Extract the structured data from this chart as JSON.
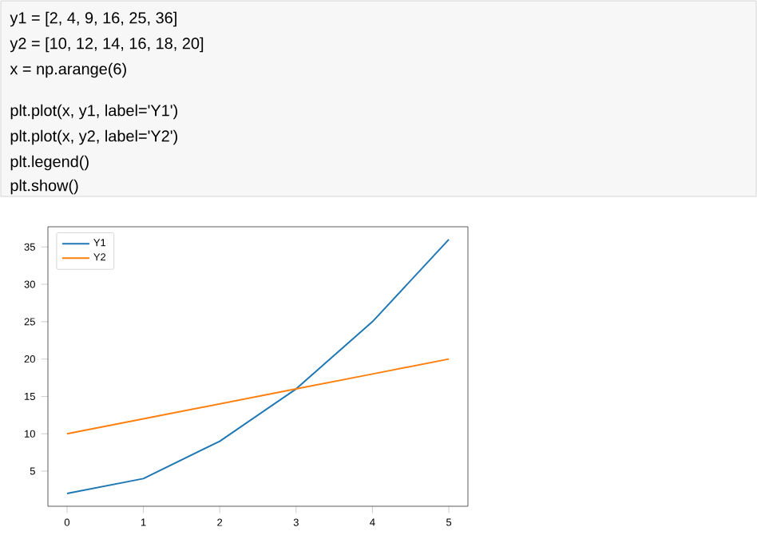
{
  "chart_data": {
    "type": "line",
    "annotations": [
      "y1 = [2, 4, 9, 16, 25, 36]",
      "y2 = [10, 12, 14, 16, 18, 20]",
      "x = np.arange(6)",
      "plt.plot(x, y1, label='Y1')",
      "plt.plot(x, y2, label='Y2')",
      "plt.legend()",
      "plt.show()"
    ],
    "x": [
      0,
      1,
      2,
      3,
      4,
      5
    ],
    "series": [
      {
        "name": "Y1",
        "color": "#1f77b4",
        "values": [
          2,
          4,
          9,
          16,
          25,
          36
        ]
      },
      {
        "name": "Y2",
        "color": "#ff7f0e",
        "values": [
          10,
          12,
          14,
          16,
          18,
          20
        ]
      }
    ],
    "xlim": [
      -0.25,
      5.25
    ],
    "ylim": [
      0.3,
      37.7
    ],
    "xticks": [
      0,
      1,
      2,
      3,
      4,
      5
    ],
    "yticks": [
      5,
      10,
      15,
      20,
      25,
      30,
      35
    ],
    "legend": "top left",
    "marker": "none",
    "line_style": "solid",
    "grid": false
  }
}
